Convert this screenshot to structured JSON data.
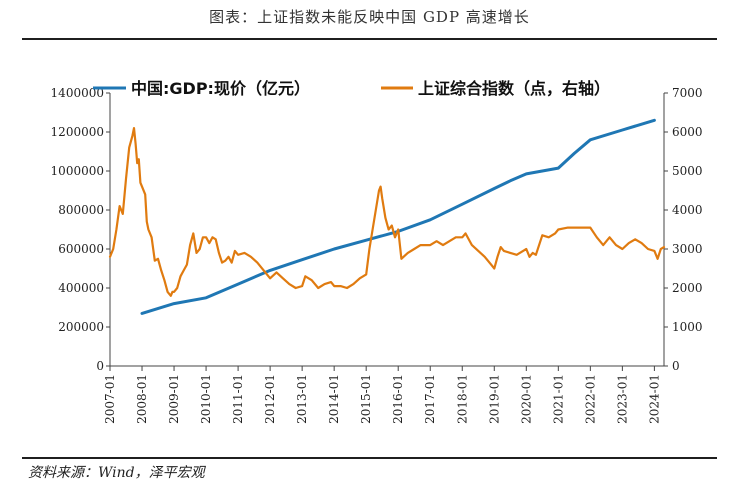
{
  "title": "图表：上证指数未能反映中国 GDP 高速增长",
  "source": "资料来源：Wind，泽平宏观",
  "colors": {
    "gdp": "#1f77b4",
    "sh": "#e07b10",
    "axis": "#444444"
  },
  "chart_data": {
    "type": "line",
    "legend": [
      "中国:GDP:现价（亿元）",
      "上证综合指数（点，右轴）"
    ],
    "x_ticks": [
      "2007-01",
      "2008-01",
      "2009-01",
      "2010-01",
      "2011-01",
      "2012-01",
      "2013-01",
      "2014-01",
      "2015-01",
      "2016-01",
      "2017-01",
      "2018-01",
      "2019-01",
      "2020-01",
      "2021-01",
      "2022-01",
      "2023-01",
      "2024-01"
    ],
    "y_left": {
      "min": 0,
      "max": 1400000,
      "ticks": [
        "0",
        "200000",
        "400000",
        "600000",
        "800000",
        "1000000",
        "1200000",
        "1400000"
      ]
    },
    "y_right": {
      "min": 0,
      "max": 7000,
      "ticks": [
        "0",
        "1000",
        "2000",
        "3000",
        "4000",
        "5000",
        "6000",
        "7000"
      ]
    },
    "series": [
      {
        "name": "中国:GDP:现价（亿元）",
        "axis": "left",
        "x": [
          2008.0,
          2009.0,
          2010.0,
          2011.0,
          2012.0,
          2013.0,
          2014.0,
          2015.0,
          2016.0,
          2017.0,
          2018.0,
          2019.0,
          2019.5,
          2020.0,
          2020.5,
          2021.0,
          2021.5,
          2022.0,
          2023.0,
          2024.0
        ],
        "values": [
          270000,
          320000,
          350000,
          420000,
          490000,
          545000,
          600000,
          645000,
          690000,
          750000,
          830000,
          910000,
          950000,
          985000,
          1000000,
          1015000,
          1090000,
          1160000,
          1210000,
          1260000
        ]
      },
      {
        "name": "上证综合指数（点，右轴）",
        "axis": "right",
        "x": [
          2007.0,
          2007.1,
          2007.2,
          2007.3,
          2007.4,
          2007.5,
          2007.6,
          2007.7,
          2007.75,
          2007.8,
          2007.85,
          2007.9,
          2007.95,
          2008.0,
          2008.1,
          2008.15,
          2008.2,
          2008.3,
          2008.4,
          2008.5,
          2008.6,
          2008.7,
          2008.8,
          2008.9,
          2008.95,
          2009.0,
          2009.1,
          2009.2,
          2009.3,
          2009.4,
          2009.5,
          2009.6,
          2009.7,
          2009.8,
          2009.9,
          2010.0,
          2010.1,
          2010.2,
          2010.3,
          2010.4,
          2010.5,
          2010.6,
          2010.7,
          2010.8,
          2010.9,
          2011.0,
          2011.2,
          2011.4,
          2011.6,
          2011.8,
          2012.0,
          2012.2,
          2012.4,
          2012.6,
          2012.8,
          2013.0,
          2013.1,
          2013.3,
          2013.5,
          2013.7,
          2013.9,
          2014.0,
          2014.2,
          2014.4,
          2014.6,
          2014.8,
          2015.0,
          2015.1,
          2015.2,
          2015.3,
          2015.4,
          2015.45,
          2015.5,
          2015.6,
          2015.7,
          2015.8,
          2015.9,
          2016.0,
          2016.1,
          2016.3,
          2016.5,
          2016.7,
          2016.9,
          2017.0,
          2017.2,
          2017.4,
          2017.6,
          2017.8,
          2018.0,
          2018.1,
          2018.3,
          2018.5,
          2018.7,
          2018.9,
          2019.0,
          2019.1,
          2019.2,
          2019.3,
          2019.5,
          2019.7,
          2019.9,
          2020.0,
          2020.1,
          2020.2,
          2020.3,
          2020.5,
          2020.7,
          2020.9,
          2021.0,
          2021.3,
          2021.6,
          2021.9,
          2022.0,
          2022.2,
          2022.4,
          2022.6,
          2022.8,
          2023.0,
          2023.2,
          2023.4,
          2023.6,
          2023.8,
          2024.0,
          2024.1,
          2024.2,
          2024.3
        ],
        "values": [
          2800,
          3000,
          3500,
          4100,
          3900,
          4800,
          5600,
          5900,
          6100,
          5700,
          5200,
          5300,
          4700,
          4600,
          4400,
          3700,
          3500,
          3300,
          2700,
          2750,
          2450,
          2200,
          1900,
          1800,
          1900,
          1900,
          2000,
          2300,
          2450,
          2600,
          3100,
          3400,
          2900,
          3000,
          3300,
          3300,
          3150,
          3300,
          3250,
          2900,
          2650,
          2700,
          2800,
          2650,
          2950,
          2850,
          2900,
          2800,
          2650,
          2450,
          2250,
          2400,
          2250,
          2100,
          2000,
          2050,
          2300,
          2200,
          2000,
          2100,
          2150,
          2050,
          2050,
          2000,
          2100,
          2250,
          2350,
          3000,
          3500,
          4000,
          4500,
          4600,
          4300,
          3800,
          3500,
          3600,
          3300,
          3500,
          2750,
          2900,
          3000,
          3100,
          3100,
          3100,
          3200,
          3100,
          3200,
          3300,
          3300,
          3400,
          3100,
          2950,
          2800,
          2600,
          2500,
          2800,
          3050,
          2950,
          2900,
          2850,
          2950,
          3000,
          2800,
          2900,
          2850,
          3350,
          3300,
          3400,
          3500,
          3550,
          3550,
          3550,
          3550,
          3300,
          3100,
          3300,
          3100,
          3000,
          3150,
          3250,
          3150,
          3000,
          2950,
          2750,
          3000,
          3050
        ]
      }
    ]
  }
}
